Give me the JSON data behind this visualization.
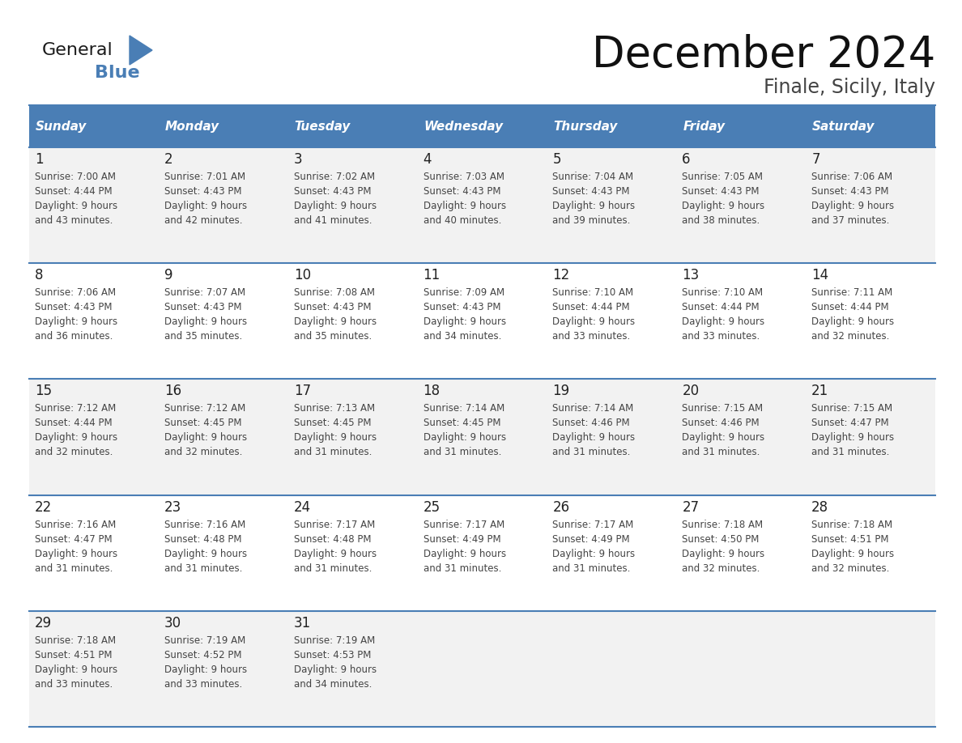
{
  "title": "December 2024",
  "subtitle": "Finale, Sicily, Italy",
  "header_color": "#4A7EB5",
  "header_text_color": "#FFFFFF",
  "cell_bg_color": "#F2F2F2",
  "cell_bg_white": "#FFFFFF",
  "days_of_week": [
    "Sunday",
    "Monday",
    "Tuesday",
    "Wednesday",
    "Thursday",
    "Friday",
    "Saturday"
  ],
  "weeks": [
    [
      {
        "day": "1",
        "sunrise": "7:00 AM",
        "sunset": "4:44 PM",
        "daylight_h": "9 hours",
        "daylight_m": "and 43 minutes."
      },
      {
        "day": "2",
        "sunrise": "7:01 AM",
        "sunset": "4:43 PM",
        "daylight_h": "9 hours",
        "daylight_m": "and 42 minutes."
      },
      {
        "day": "3",
        "sunrise": "7:02 AM",
        "sunset": "4:43 PM",
        "daylight_h": "9 hours",
        "daylight_m": "and 41 minutes."
      },
      {
        "day": "4",
        "sunrise": "7:03 AM",
        "sunset": "4:43 PM",
        "daylight_h": "9 hours",
        "daylight_m": "and 40 minutes."
      },
      {
        "day": "5",
        "sunrise": "7:04 AM",
        "sunset": "4:43 PM",
        "daylight_h": "9 hours",
        "daylight_m": "and 39 minutes."
      },
      {
        "day": "6",
        "sunrise": "7:05 AM",
        "sunset": "4:43 PM",
        "daylight_h": "9 hours",
        "daylight_m": "and 38 minutes."
      },
      {
        "day": "7",
        "sunrise": "7:06 AM",
        "sunset": "4:43 PM",
        "daylight_h": "9 hours",
        "daylight_m": "and 37 minutes."
      }
    ],
    [
      {
        "day": "8",
        "sunrise": "7:06 AM",
        "sunset": "4:43 PM",
        "daylight_h": "9 hours",
        "daylight_m": "and 36 minutes."
      },
      {
        "day": "9",
        "sunrise": "7:07 AM",
        "sunset": "4:43 PM",
        "daylight_h": "9 hours",
        "daylight_m": "and 35 minutes."
      },
      {
        "day": "10",
        "sunrise": "7:08 AM",
        "sunset": "4:43 PM",
        "daylight_h": "9 hours",
        "daylight_m": "and 35 minutes."
      },
      {
        "day": "11",
        "sunrise": "7:09 AM",
        "sunset": "4:43 PM",
        "daylight_h": "9 hours",
        "daylight_m": "and 34 minutes."
      },
      {
        "day": "12",
        "sunrise": "7:10 AM",
        "sunset": "4:44 PM",
        "daylight_h": "9 hours",
        "daylight_m": "and 33 minutes."
      },
      {
        "day": "13",
        "sunrise": "7:10 AM",
        "sunset": "4:44 PM",
        "daylight_h": "9 hours",
        "daylight_m": "and 33 minutes."
      },
      {
        "day": "14",
        "sunrise": "7:11 AM",
        "sunset": "4:44 PM",
        "daylight_h": "9 hours",
        "daylight_m": "and 32 minutes."
      }
    ],
    [
      {
        "day": "15",
        "sunrise": "7:12 AM",
        "sunset": "4:44 PM",
        "daylight_h": "9 hours",
        "daylight_m": "and 32 minutes."
      },
      {
        "day": "16",
        "sunrise": "7:12 AM",
        "sunset": "4:45 PM",
        "daylight_h": "9 hours",
        "daylight_m": "and 32 minutes."
      },
      {
        "day": "17",
        "sunrise": "7:13 AM",
        "sunset": "4:45 PM",
        "daylight_h": "9 hours",
        "daylight_m": "and 31 minutes."
      },
      {
        "day": "18",
        "sunrise": "7:14 AM",
        "sunset": "4:45 PM",
        "daylight_h": "9 hours",
        "daylight_m": "and 31 minutes."
      },
      {
        "day": "19",
        "sunrise": "7:14 AM",
        "sunset": "4:46 PM",
        "daylight_h": "9 hours",
        "daylight_m": "and 31 minutes."
      },
      {
        "day": "20",
        "sunrise": "7:15 AM",
        "sunset": "4:46 PM",
        "daylight_h": "9 hours",
        "daylight_m": "and 31 minutes."
      },
      {
        "day": "21",
        "sunrise": "7:15 AM",
        "sunset": "4:47 PM",
        "daylight_h": "9 hours",
        "daylight_m": "and 31 minutes."
      }
    ],
    [
      {
        "day": "22",
        "sunrise": "7:16 AM",
        "sunset": "4:47 PM",
        "daylight_h": "9 hours",
        "daylight_m": "and 31 minutes."
      },
      {
        "day": "23",
        "sunrise": "7:16 AM",
        "sunset": "4:48 PM",
        "daylight_h": "9 hours",
        "daylight_m": "and 31 minutes."
      },
      {
        "day": "24",
        "sunrise": "7:17 AM",
        "sunset": "4:48 PM",
        "daylight_h": "9 hours",
        "daylight_m": "and 31 minutes."
      },
      {
        "day": "25",
        "sunrise": "7:17 AM",
        "sunset": "4:49 PM",
        "daylight_h": "9 hours",
        "daylight_m": "and 31 minutes."
      },
      {
        "day": "26",
        "sunrise": "7:17 AM",
        "sunset": "4:49 PM",
        "daylight_h": "9 hours",
        "daylight_m": "and 31 minutes."
      },
      {
        "day": "27",
        "sunrise": "7:18 AM",
        "sunset": "4:50 PM",
        "daylight_h": "9 hours",
        "daylight_m": "and 32 minutes."
      },
      {
        "day": "28",
        "sunrise": "7:18 AM",
        "sunset": "4:51 PM",
        "daylight_h": "9 hours",
        "daylight_m": "and 32 minutes."
      }
    ],
    [
      {
        "day": "29",
        "sunrise": "7:18 AM",
        "sunset": "4:51 PM",
        "daylight_h": "9 hours",
        "daylight_m": "and 33 minutes."
      },
      {
        "day": "30",
        "sunrise": "7:19 AM",
        "sunset": "4:52 PM",
        "daylight_h": "9 hours",
        "daylight_m": "and 33 minutes."
      },
      {
        "day": "31",
        "sunrise": "7:19 AM",
        "sunset": "4:53 PM",
        "daylight_h": "9 hours",
        "daylight_m": "and 34 minutes."
      },
      null,
      null,
      null,
      null
    ]
  ],
  "logo_general_color": "#1a1a1a",
  "logo_blue_color": "#4A7EB5",
  "border_color": "#4A7EB5",
  "line_color": "#4A7EB5"
}
